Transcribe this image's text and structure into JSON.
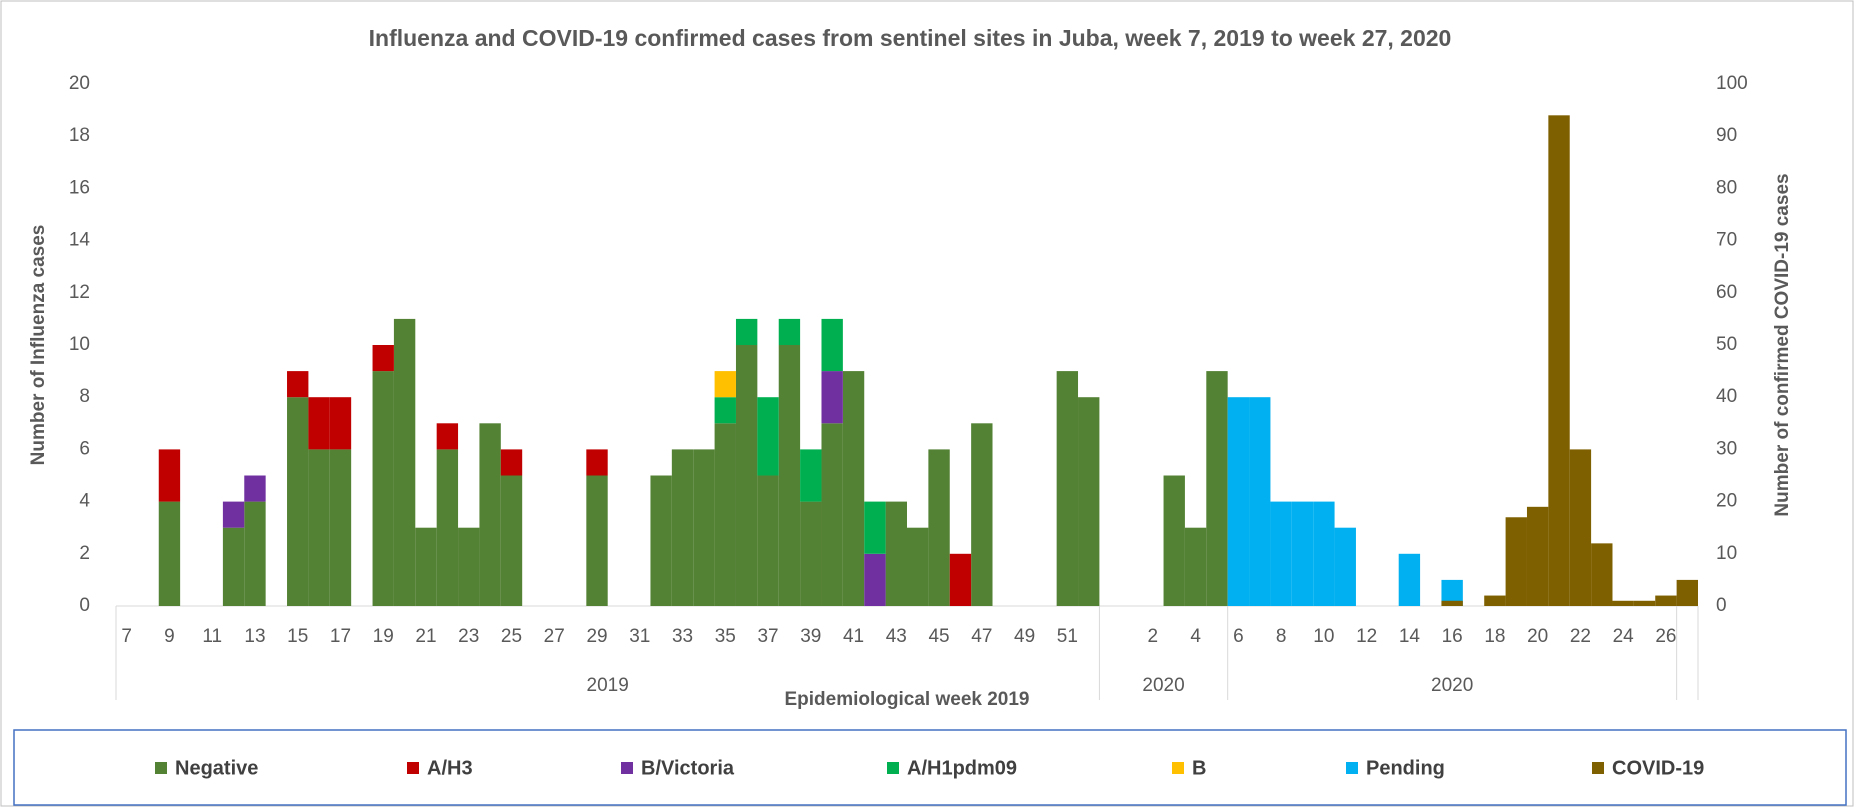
{
  "chart_data": {
    "type": "stacked_bar",
    "title": "Influenza and COVID-19 confirmed cases from sentinel sites in Juba, week 7, 2019 to week 27, 2020",
    "x_label": "Epidemiological week 2019",
    "y_label": "Number of Influenza cases",
    "y2_label": "Number of confirmed COVID-19 cases",
    "categories": [
      "7",
      null,
      "9",
      null,
      "11",
      null,
      "13",
      null,
      "15",
      null,
      "17",
      null,
      "19",
      null,
      "21",
      null,
      "23",
      null,
      "25",
      null,
      "27",
      null,
      "29",
      null,
      "31",
      null,
      "33",
      null,
      "35",
      null,
      "37",
      null,
      "39",
      null,
      "41",
      null,
      "43",
      null,
      "45",
      null,
      "47",
      null,
      "49",
      null,
      "51",
      null,
      null,
      null,
      "2",
      null,
      "4",
      null,
      "6",
      null,
      "8",
      null,
      "10",
      null,
      "12",
      null,
      "14",
      null,
      "16",
      null,
      "18",
      null,
      "20",
      null,
      "22",
      null,
      "24",
      null,
      "26",
      null
    ],
    "x_groups": [
      {
        "label": "2019",
        "size": 46
      },
      {
        "label": "2020",
        "size": 6
      },
      {
        "label": "2020",
        "size": 21
      },
      {
        "size": 1
      }
    ],
    "ylim": [
      0,
      20
    ],
    "yticks": [
      0,
      2,
      4,
      6,
      8,
      10,
      12,
      14,
      16,
      18,
      20
    ],
    "y2lim": [
      0,
      100
    ],
    "y2ticks": [
      0,
      10,
      20,
      30,
      40,
      50,
      60,
      70,
      80,
      90,
      100
    ],
    "legend": "bottom",
    "series": [
      {
        "name": "Negative",
        "color": "#548235",
        "values": [
          0,
          0,
          4,
          0,
          0,
          3,
          4,
          0,
          8,
          6,
          6,
          0,
          9,
          11,
          3,
          6,
          3,
          7,
          5,
          0,
          0,
          0,
          5,
          0,
          0,
          5,
          6,
          6,
          7,
          10,
          5,
          10,
          4,
          7,
          9,
          0,
          4,
          3,
          6,
          0,
          7,
          0,
          0,
          0,
          9,
          8,
          0,
          0,
          0,
          5,
          3,
          9,
          0,
          0,
          0,
          0,
          0,
          0,
          0,
          0,
          0,
          0,
          0,
          0,
          0,
          0,
          0,
          0,
          0,
          0,
          0,
          0,
          0,
          0
        ]
      },
      {
        "name": "A/H3",
        "color": "#c00000",
        "values": [
          0,
          0,
          2,
          0,
          0,
          0,
          0,
          0,
          1,
          2,
          2,
          0,
          1,
          0,
          0,
          1,
          0,
          0,
          1,
          0,
          0,
          0,
          1,
          0,
          0,
          0,
          0,
          0,
          0,
          0,
          0,
          0,
          0,
          0,
          0,
          0,
          0,
          0,
          0,
          2,
          0,
          0,
          0,
          0,
          0,
          0,
          0,
          0,
          0,
          0,
          0,
          0,
          0,
          0,
          0,
          0,
          0,
          0,
          0,
          0,
          0,
          0,
          0,
          0,
          0,
          0,
          0,
          0,
          0,
          0,
          0,
          0,
          0,
          0
        ]
      },
      {
        "name": "B/Victoria",
        "color": "#7030a0",
        "values": [
          0,
          0,
          0,
          0,
          0,
          1,
          1,
          0,
          0,
          0,
          0,
          0,
          0,
          0,
          0,
          0,
          0,
          0,
          0,
          0,
          0,
          0,
          0,
          0,
          0,
          0,
          0,
          0,
          0,
          0,
          0,
          0,
          0,
          2,
          0,
          2,
          0,
          0,
          0,
          0,
          0,
          0,
          0,
          0,
          0,
          0,
          0,
          0,
          0,
          0,
          0,
          0,
          0,
          0,
          0,
          0,
          0,
          0,
          0,
          0,
          0,
          0,
          0,
          0,
          0,
          0,
          0,
          0,
          0,
          0,
          0,
          0,
          0,
          0
        ]
      },
      {
        "name": "A/H1pdm09",
        "color": "#00b050",
        "values": [
          0,
          0,
          0,
          0,
          0,
          0,
          0,
          0,
          0,
          0,
          0,
          0,
          0,
          0,
          0,
          0,
          0,
          0,
          0,
          0,
          0,
          0,
          0,
          0,
          0,
          0,
          0,
          0,
          1,
          1,
          3,
          1,
          2,
          2,
          0,
          2,
          0,
          0,
          0,
          0,
          0,
          0,
          0,
          0,
          0,
          0,
          0,
          0,
          0,
          0,
          0,
          0,
          0,
          0,
          0,
          0,
          0,
          0,
          0,
          0,
          0,
          0,
          0,
          0,
          0,
          0,
          0,
          0,
          0,
          0,
          0,
          0,
          0,
          0
        ]
      },
      {
        "name": "B",
        "color": "#ffc000",
        "values": [
          0,
          0,
          0,
          0,
          0,
          0,
          0,
          0,
          0,
          0,
          0,
          0,
          0,
          0,
          0,
          0,
          0,
          0,
          0,
          0,
          0,
          0,
          0,
          0,
          0,
          0,
          0,
          0,
          1,
          0,
          0,
          0,
          0,
          0,
          0,
          0,
          0,
          0,
          0,
          0,
          0,
          0,
          0,
          0,
          0,
          0,
          0,
          0,
          0,
          0,
          0,
          0,
          0,
          0,
          0,
          0,
          0,
          0,
          0,
          0,
          0,
          0,
          0,
          0,
          0,
          0,
          0,
          0,
          0,
          0,
          0,
          0,
          0,
          0
        ]
      },
      {
        "name": "Pending",
        "color": "#00b0f0",
        "values": [
          0,
          0,
          0,
          0,
          0,
          0,
          0,
          0,
          0,
          0,
          0,
          0,
          0,
          0,
          0,
          0,
          0,
          0,
          0,
          0,
          0,
          0,
          0,
          0,
          0,
          0,
          0,
          0,
          0,
          0,
          0,
          0,
          0,
          0,
          0,
          0,
          0,
          0,
          0,
          0,
          0,
          0,
          0,
          0,
          0,
          0,
          0,
          0,
          0,
          0,
          0,
          0,
          8,
          8,
          4,
          4,
          4,
          3,
          0,
          0,
          2,
          0,
          1,
          0,
          0,
          0,
          0,
          0,
          0,
          0,
          0,
          0,
          0,
          0
        ]
      },
      {
        "name": "COVID-19",
        "color": "#7f6000",
        "axis": "y2",
        "values": [
          0,
          0,
          0,
          0,
          0,
          0,
          0,
          0,
          0,
          0,
          0,
          0,
          0,
          0,
          0,
          0,
          0,
          0,
          0,
          0,
          0,
          0,
          0,
          0,
          0,
          0,
          0,
          0,
          0,
          0,
          0,
          0,
          0,
          0,
          0,
          0,
          0,
          0,
          0,
          0,
          0,
          0,
          0,
          0,
          0,
          0,
          0,
          0,
          0,
          0,
          0,
          0,
          0,
          0,
          0,
          0,
          0,
          0,
          0,
          0,
          0,
          0,
          1,
          0,
          2,
          17,
          19,
          94,
          30,
          12,
          1,
          1,
          2,
          5
        ]
      }
    ]
  }
}
